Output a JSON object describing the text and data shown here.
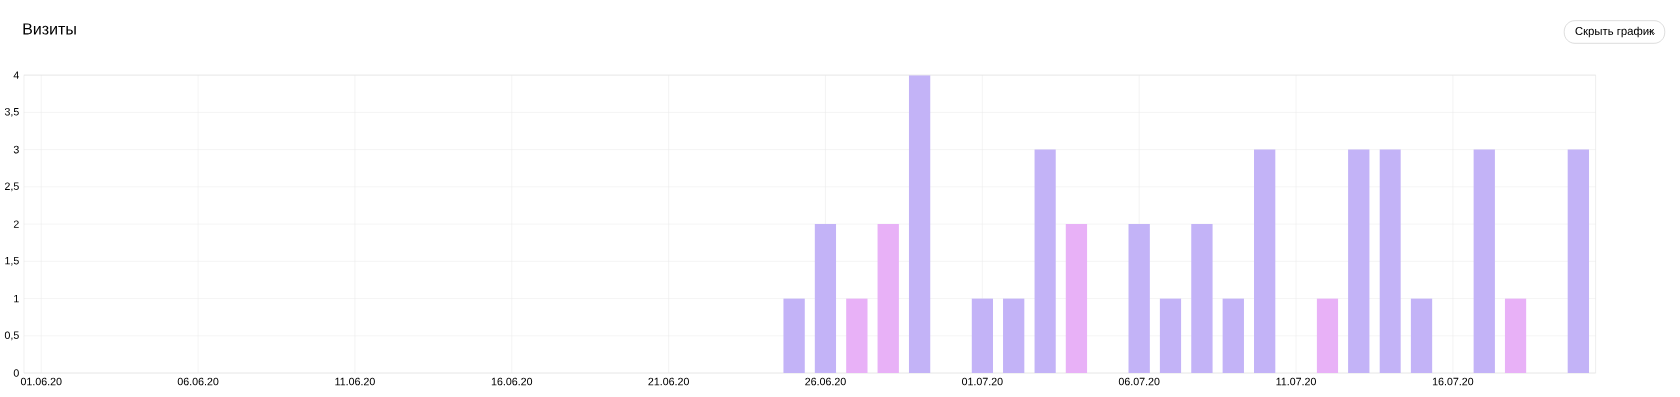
{
  "chart_data": {
    "type": "bar",
    "title": "Визиты",
    "annotations": [
      "Скрыть график"
    ],
    "categories": [
      "01.06.20",
      null,
      null,
      null,
      null,
      "06.06.20",
      null,
      null,
      null,
      null,
      "11.06.20",
      null,
      null,
      null,
      null,
      "16.06.20",
      null,
      null,
      null,
      null,
      "21.06.20",
      null,
      null,
      null,
      null,
      "26.06.20",
      null,
      null,
      null,
      null,
      "01.07.20",
      null,
      null,
      null,
      null,
      "06.07.20",
      null,
      null,
      null,
      null,
      "11.07.20",
      null,
      null,
      null,
      null,
      "16.07.20",
      null,
      null,
      null,
      null
    ],
    "values": [
      0,
      0,
      0,
      0,
      0,
      0,
      0,
      0,
      0,
      0,
      0,
      0,
      0,
      0,
      0,
      0,
      0,
      0,
      0,
      0,
      0,
      0,
      0,
      0,
      1,
      2,
      1,
      2,
      4,
      0,
      1,
      1,
      3,
      2,
      0,
      2,
      1,
      2,
      1,
      3,
      0,
      1,
      3,
      3,
      1,
      0,
      3,
      1,
      0,
      3
    ],
    "colors": [
      "#c3b3f7",
      "#c3b3f7",
      "#c3b3f7",
      "#c3b3f7",
      "#c3b3f7",
      "#e8b1f7",
      "#e8b1f7",
      "#c3b3f7",
      "#c3b3f7",
      "#c3b3f7",
      "#c3b3f7",
      "#c3b3f7",
      "#e8b1f7",
      "#e8b1f7",
      "#c3b3f7",
      "#c3b3f7",
      "#c3b3f7",
      "#c3b3f7",
      "#c3b3f7",
      "#e8b1f7",
      "#e8b1f7",
      "#c3b3f7",
      "#c3b3f7",
      "#c3b3f7",
      "#c3b3f7",
      "#c3b3f7",
      "#e8b1f7",
      "#e8b1f7",
      "#c3b3f7",
      "#c3b3f7",
      "#c3b3f7",
      "#c3b3f7",
      "#c3b3f7",
      "#e8b1f7",
      "#e8b1f7",
      "#c3b3f7",
      "#c3b3f7",
      "#c3b3f7",
      "#c3b3f7",
      "#c3b3f7",
      "#e8b1f7",
      "#e8b1f7",
      "#c3b3f7",
      "#c3b3f7",
      "#c3b3f7",
      "#c3b3f7",
      "#c3b3f7",
      "#e8b1f7",
      "#e8b1f7",
      "#c3b3f7"
    ],
    "ylim": [
      0,
      4
    ],
    "yticks": [
      0,
      {
        "value": 0.5,
        "label": "0,5"
      },
      1,
      {
        "value": 1.5,
        "label": "1,5"
      },
      2,
      {
        "value": 2.5,
        "label": "2,5"
      },
      3,
      {
        "value": 3.5,
        "label": "3,5"
      },
      4
    ],
    "grid": true
  }
}
